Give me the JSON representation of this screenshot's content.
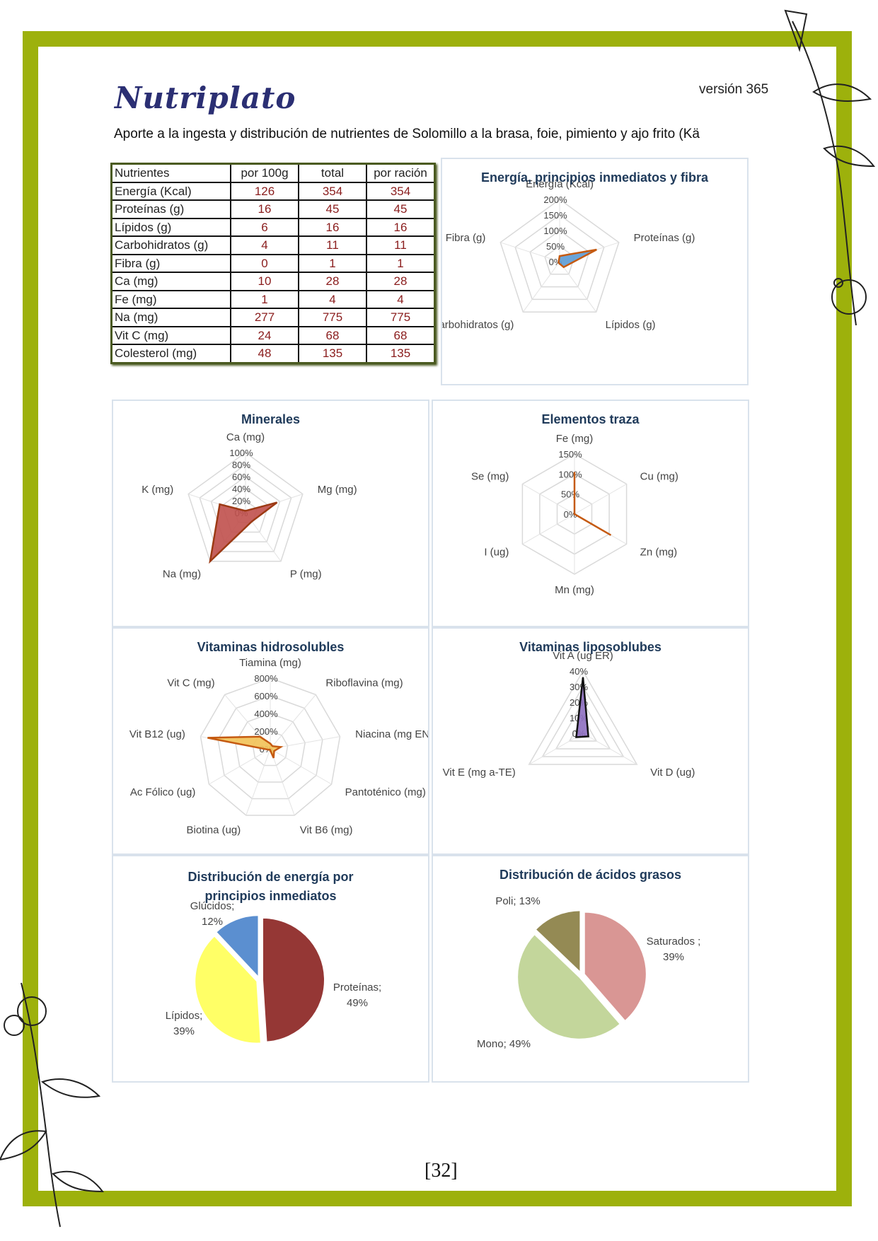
{
  "header": {
    "logo": "Nutriplato",
    "version": "versión 365",
    "subtitle": "Aporte a la ingesta y distribución de nutrientes de Solomillo a la brasa, foie, pimiento y ajo frito (Kä"
  },
  "table": {
    "headers": [
      "Nutrientes",
      "por 100g",
      "total",
      "por ración"
    ],
    "rows": [
      [
        "Energía (Kcal)",
        "126",
        "354",
        "354"
      ],
      [
        "Proteínas (g)",
        "16",
        "45",
        "45"
      ],
      [
        "Lípidos (g)",
        "6",
        "16",
        "16"
      ],
      [
        "Carbohidratos (g)",
        "4",
        "11",
        "11"
      ],
      [
        "Fibra  (g)",
        "0",
        "1",
        "1"
      ],
      [
        "Ca (mg)",
        "10",
        "28",
        "28"
      ],
      [
        "Fe (mg)",
        "1",
        "4",
        "4"
      ],
      [
        "Na (mg)",
        "277",
        "775",
        "775"
      ],
      [
        "Vit C (mg)",
        "24",
        "68",
        "68"
      ],
      [
        "Colesterol (mg)",
        "48",
        "135",
        "135"
      ]
    ]
  },
  "page_number": "[32]",
  "chart_data": [
    {
      "type": "radar",
      "title": "Energía, principios inmediatos y fibra",
      "axes": [
        "Energía (Kcal)",
        "Proteínas (g)",
        "Lípidos (g)",
        "Carbohidratos (g)",
        "Fibra  (g)"
      ],
      "ticks": [
        "0%",
        "50%",
        "100%",
        "150%",
        "200%"
      ],
      "max": 200,
      "values": [
        18,
        125,
        22,
        5,
        3
      ],
      "fill": "#5b9bd5",
      "stroke": "#c55a11"
    },
    {
      "type": "radar",
      "title": "Minerales",
      "axes": [
        "Ca (mg)",
        "Mg (mg)",
        "P (mg)",
        "Na (mg)",
        "K (mg)"
      ],
      "ticks": [
        "0%",
        "20%",
        "40%",
        "60%",
        "80%",
        "100%"
      ],
      "max": 100,
      "values": [
        3,
        55,
        18,
        100,
        45
      ],
      "fill": "#c0504d",
      "stroke": "#9c3a14"
    },
    {
      "type": "radar",
      "title": "Elementos traza",
      "axes": [
        "Fe (mg)",
        "Cu (mg)",
        "Zn (mg)",
        "Mn (mg)",
        "I (ug)",
        "Se (mg)"
      ],
      "ticks": [
        "0%",
        "50%",
        "100%",
        "150%"
      ],
      "max": 150,
      "values": [
        105,
        0,
        105,
        0,
        0,
        0
      ],
      "fill": "none",
      "stroke": "#c55a11"
    },
    {
      "type": "radar",
      "title": "Vitaminas hidrosolubles",
      "axes": [
        "Tiamina (mg)",
        "Riboflavina (mg)",
        "Niacina (mg EN)",
        "Pantoténico (mg)",
        "Vit B6 (mg)",
        "Biotina (ug)",
        "Ac Fólico (ug)",
        "Vit B12 (ug)",
        "Vit C (mg)"
      ],
      "ticks": [
        "0%",
        "200%",
        "400%",
        "600%",
        "800%"
      ],
      "max": 800,
      "values": [
        60,
        40,
        120,
        50,
        110,
        10,
        20,
        720,
        180
      ],
      "fill": "#f2c257",
      "stroke": "#c55a11"
    },
    {
      "type": "radar",
      "title": "Vitaminas liposoblubes",
      "axes": [
        "Vit A (ug ER)",
        "Vit D (ug)",
        "Vit E (mg a-TE)"
      ],
      "ticks": [
        "0%",
        "10%",
        "20%",
        "30%",
        "40%"
      ],
      "max": 40,
      "values": [
        36,
        4,
        5
      ],
      "fill": "#8e6fc1",
      "stroke": "#111111"
    },
    {
      "type": "pie",
      "title": "Distribución de energía por principios inmediatos",
      "slices": [
        {
          "label": "Proteínas; 49%",
          "value": 49,
          "color": "#953735"
        },
        {
          "label": "Lípidos; 39%",
          "value": 39,
          "color": "#ffff66"
        },
        {
          "label": "Glúcidos; 12%",
          "value": 12,
          "color": "#5b8fd0"
        }
      ]
    },
    {
      "type": "pie",
      "title": "Distribución de ácidos grasos",
      "slices": [
        {
          "label": "Saturados ; 39%",
          "value": 39,
          "color": "#d99694"
        },
        {
          "label": "Mono; 49%",
          "value": 49,
          "color": "#c3d69b"
        },
        {
          "label": "Poli; 13%",
          "value": 13,
          "color": "#948a54"
        }
      ]
    }
  ]
}
